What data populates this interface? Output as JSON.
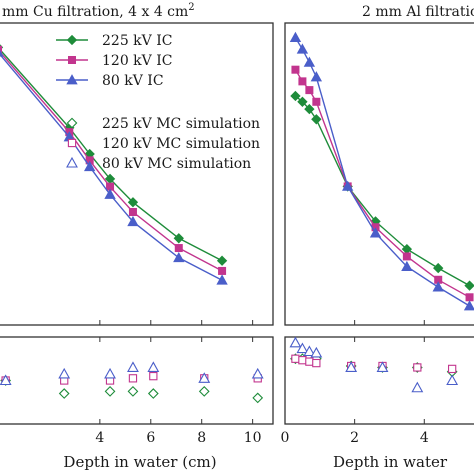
{
  "chart_data": [
    {
      "type": "line",
      "title": "mm Cu filtration, 4 x 4 cm",
      "title_superscript": "2",
      "xlabel": "Depth in water (cm)",
      "ylabel": "",
      "xlim": [
        0,
        10.8
      ],
      "x_ticks": [
        4,
        6,
        8,
        10
      ],
      "grid": false,
      "legend_placement": "top-right",
      "series": [
        {
          "name": "225 kV IC",
          "kind": "measured",
          "marker": "diamond-filled",
          "color": "#1e8c3a",
          "x": [
            0,
            2.8,
            3.6,
            4.4,
            5.3,
            7.1,
            8.8
          ],
          "y": [
            0.57,
            0.405,
            0.351,
            0.3,
            0.252,
            0.178,
            0.132
          ]
        },
        {
          "name": "120 kV IC",
          "kind": "measured",
          "marker": "square-filled",
          "color": "#c2358e",
          "x": [
            0,
            2.8,
            3.6,
            4.4,
            5.3,
            7.1,
            8.8
          ],
          "y": [
            0.565,
            0.396,
            0.338,
            0.284,
            0.232,
            0.158,
            0.111
          ]
        },
        {
          "name": "80 kV IC",
          "kind": "measured",
          "marker": "triangle-filled",
          "color": "#4a5ec9",
          "x": [
            0,
            2.8,
            3.6,
            4.4,
            5.3,
            7.1,
            8.8
          ],
          "y": [
            0.56,
            0.386,
            0.325,
            0.268,
            0.212,
            0.138,
            0.092
          ]
        },
        {
          "name": "225 kV MC simulation",
          "kind": "simulation",
          "marker": "diamond-open",
          "color": "#1e8c3a",
          "x": [],
          "y": []
        },
        {
          "name": "120 kV MC simulation",
          "kind": "simulation",
          "marker": "square-open",
          "color": "#c2358e",
          "x": [],
          "y": []
        },
        {
          "name": "80 kV MC simulation",
          "kind": "simulation",
          "marker": "triangle-open",
          "color": "#4a5ec9",
          "x": [],
          "y": []
        }
      ]
    },
    {
      "type": "line",
      "title": "2 mm Al filtratio",
      "xlabel": "",
      "ylabel": "",
      "xlim": [
        0,
        5.6
      ],
      "x_ticks": [
        0,
        2,
        4
      ],
      "grid": false,
      "series": [
        {
          "name": "225 kV IC",
          "marker": "diamond-filled",
          "color": "#1e8c3a",
          "x": [
            0.3,
            0.5,
            0.7,
            0.9,
            1.8,
            2.6,
            3.5,
            4.4,
            5.3
          ],
          "y": [
            1.62,
            1.58,
            1.53,
            1.46,
            1.0,
            0.76,
            0.57,
            0.44,
            0.32
          ]
        },
        {
          "name": "120 kV IC",
          "marker": "square-filled",
          "color": "#c2358e",
          "x": [
            0.3,
            0.5,
            0.7,
            0.9,
            1.8,
            2.6,
            3.5,
            4.4,
            5.3
          ],
          "y": [
            1.8,
            1.72,
            1.66,
            1.58,
            1.0,
            0.72,
            0.52,
            0.36,
            0.24
          ]
        },
        {
          "name": "80 kV IC",
          "marker": "triangle-filled",
          "color": "#4a5ec9",
          "x": [
            0.3,
            0.5,
            0.7,
            0.9,
            1.8,
            2.6,
            3.5,
            4.4,
            5.3
          ],
          "y": [
            2.02,
            1.94,
            1.85,
            1.75,
            1.0,
            0.68,
            0.45,
            0.31,
            0.18
          ]
        }
      ]
    },
    {
      "type": "scatter",
      "title": "",
      "xlabel": "Depth in water (cm)",
      "ylabel": "",
      "xlim": [
        0,
        10.8
      ],
      "x_ticks": [
        4,
        6,
        8,
        10
      ],
      "series": [
        {
          "name": "225 kV MC simulation",
          "marker": "diamond-open",
          "color": "#1e8c3a",
          "x": [
            0.3,
            2.6,
            4.4,
            5.3,
            6.1,
            8.1,
            10.2
          ],
          "y": [
            0.0,
            -0.6,
            -0.5,
            -0.5,
            -0.6,
            -0.5,
            -0.8
          ]
        },
        {
          "name": "120 kV MC simulation",
          "marker": "square-open",
          "color": "#c2358e",
          "x": [
            0.3,
            2.6,
            4.4,
            5.3,
            6.1,
            8.1,
            10.2
          ],
          "y": [
            0.0,
            0.0,
            0.0,
            0.1,
            0.2,
            0.1,
            0.1
          ]
        },
        {
          "name": "80 kV MC simulation",
          "marker": "triangle-open",
          "color": "#4a5ec9",
          "x": [
            0.3,
            2.6,
            4.4,
            5.3,
            6.1,
            8.1,
            10.2
          ],
          "y": [
            0.0,
            0.3,
            0.3,
            0.6,
            0.6,
            0.1,
            0.3
          ]
        }
      ]
    },
    {
      "type": "scatter",
      "title": "",
      "xlabel": "Depth in water",
      "ylabel": "",
      "xlim": [
        0,
        5.6
      ],
      "x_ticks": [
        0,
        2,
        4
      ],
      "series": [
        {
          "name": "225 kV MC simulation",
          "marker": "diamond-open",
          "color": "#1e8c3a",
          "x": [
            0.3,
            0.5,
            0.7,
            0.9,
            1.9,
            2.8,
            3.8,
            4.8
          ],
          "y": [
            0.5,
            0.5,
            0.6,
            0.5,
            0.0,
            -0.1,
            -0.1,
            -0.4
          ]
        },
        {
          "name": "120 kV MC simulation",
          "marker": "square-open",
          "color": "#c2358e",
          "x": [
            0.3,
            0.5,
            0.7,
            0.9,
            1.9,
            2.8,
            3.8,
            4.8
          ],
          "y": [
            0.5,
            0.4,
            0.3,
            0.2,
            0.0,
            0.0,
            -0.1,
            -0.2
          ]
        },
        {
          "name": "80 kV MC simulation",
          "marker": "triangle-open",
          "color": "#4a5ec9",
          "x": [
            0.3,
            0.5,
            0.7,
            0.9,
            1.9,
            2.8,
            3.8,
            4.8
          ],
          "y": [
            1.6,
            1.2,
            1.0,
            0.9,
            -0.1,
            -0.1,
            -1.5,
            -1.0
          ]
        }
      ]
    }
  ]
}
